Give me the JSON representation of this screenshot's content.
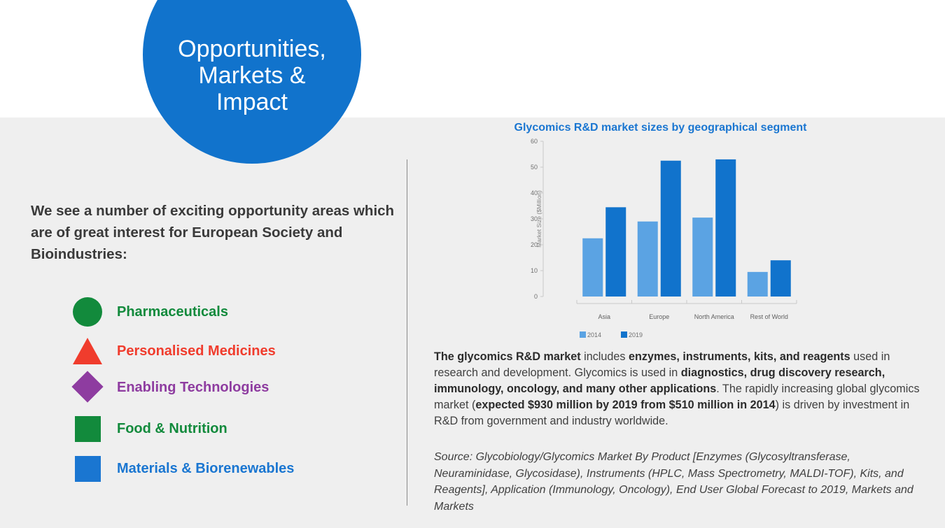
{
  "header": {
    "title": "Opportunities,\nMarkets &\nImpact"
  },
  "intro": "We see a number of exciting  opportunity areas which are of great interest for European Society and Bioindustries:",
  "areas": [
    {
      "label": "Pharmaceuticals",
      "shape": "circle",
      "color": "#128a3c"
    },
    {
      "label": "Personalised Medicines",
      "shape": "triangle",
      "color": "#f03c2d"
    },
    {
      "label": "Enabling Technologies",
      "shape": "diamond",
      "color": "#8e3ca0"
    },
    {
      "label": "Food & Nutrition",
      "shape": "square",
      "color": "#128a3c"
    },
    {
      "label": "Materials & Biorenewables",
      "shape": "square",
      "color": "#1a76d1"
    }
  ],
  "chart_data": {
    "type": "bar",
    "title": "Glycomics R&D market sizes by geographical segment",
    "ylabel": "Market Size ($Million)",
    "xlabel": "",
    "categories": [
      "Asia",
      "Europe",
      "North America",
      "Rest of World"
    ],
    "series": [
      {
        "name": "2014",
        "values": [
          22.5,
          29,
          30.5,
          9.5
        ],
        "color": "#5ba3e3"
      },
      {
        "name": "2019",
        "values": [
          34.5,
          52.5,
          53,
          14
        ],
        "color": "#1173cc"
      }
    ],
    "ylim": [
      0,
      60
    ],
    "yticks": [
      "0",
      "10",
      "20",
      "30",
      "40",
      "50",
      "60"
    ],
    "legend_position": "bottom-left",
    "grid": false
  },
  "description": {
    "parts": [
      {
        "text": "The glycomics R&D market",
        "bold": true
      },
      {
        "text": " includes ",
        "bold": false
      },
      {
        "text": "enzymes, instruments, kits, and reagents",
        "bold": true
      },
      {
        "text": " used in research and development. Glycomics is used in ",
        "bold": false
      },
      {
        "text": "diagnostics, drug discovery research, immunology, oncology, and many other applications",
        "bold": true
      },
      {
        "text": ". The rapidly increasing global glycomics market (",
        "bold": false
      },
      {
        "text": "expected $930 million by 2019 from $510 million in 2014",
        "bold": true
      },
      {
        "text": ") is driven by investment in R&D from government and industry worldwide.",
        "bold": false
      }
    ]
  },
  "source": "Source: Glycobiology/Glycomics Market By Product [Enzymes (Glycosyltransferase, Neuraminidase, Glycosidase), Instruments (HPLC, Mass Spectrometry, MALDI-TOF), Kits, and Reagents], Application (Immunology, Oncology), End User Global Forecast to 2019, Markets and Markets"
}
